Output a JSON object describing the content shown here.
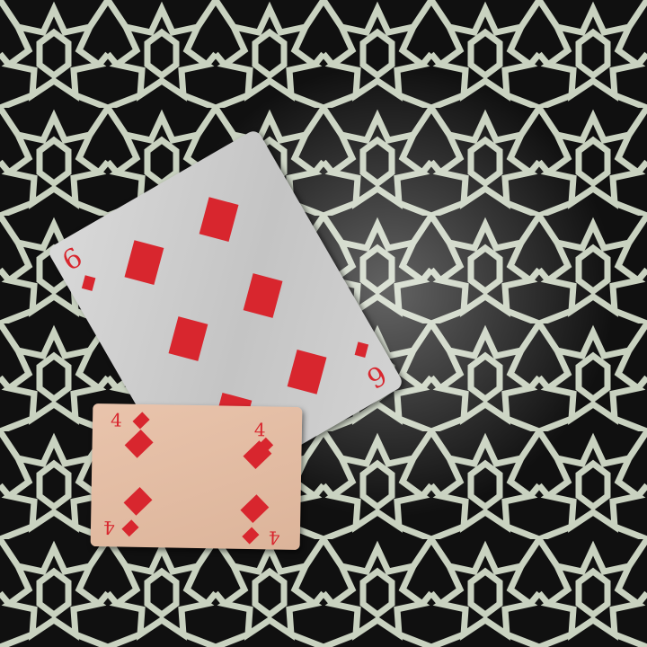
{
  "scene": {
    "colors": {
      "background": "#101010",
      "pattern_line": "#c9d2c0",
      "suit_red": "#d8262e",
      "card_six_face": "#cfcfcf",
      "card_four_face": "#e2bca2"
    }
  },
  "cards": [
    {
      "rank": "6",
      "suit": "diamonds",
      "suit_icon": "diamond-icon"
    },
    {
      "rank": "4",
      "suit": "diamonds",
      "suit_icon": "diamond-icon"
    }
  ]
}
